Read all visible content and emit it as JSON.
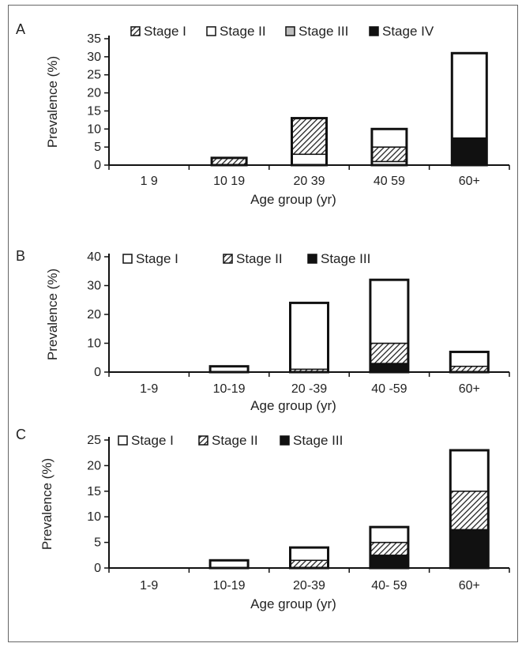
{
  "colors": {
    "stage_iii_grey": "#bdbdbd",
    "border": "#555555",
    "ink": "#111111"
  },
  "chart_data": [
    {
      "panel": "A",
      "type": "bar",
      "stacked": true,
      "categories": [
        "1 9",
        "10 19",
        "20 39",
        "40 59",
        "60+"
      ],
      "xlabel": "Age group (yr)",
      "ylabel": "Prevalence (%)",
      "ylim": [
        0,
        35
      ],
      "yticks": [
        0,
        5,
        10,
        15,
        20,
        25,
        30,
        35
      ],
      "legend": [
        {
          "name": "Stage I",
          "fill": "hatch"
        },
        {
          "name": "Stage II",
          "fill": "white"
        },
        {
          "name": "Stage III",
          "fill": "grey"
        },
        {
          "name": "Stage IV",
          "fill": "black"
        }
      ],
      "series": [
        {
          "name": "Stage IV",
          "values": [
            0,
            0,
            0,
            0,
            7.5
          ]
        },
        {
          "name": "Stage III",
          "values": [
            0,
            0,
            0,
            0,
            0
          ]
        },
        {
          "name": "Stage II",
          "values": [
            0,
            0,
            3,
            1,
            23.5
          ]
        },
        {
          "name": "Stage I",
          "values": [
            0,
            2,
            10,
            4,
            0
          ]
        },
        {
          "name": "Stage II",
          "values": [
            0,
            0,
            0,
            5,
            0
          ]
        }
      ]
    },
    {
      "panel": "B",
      "type": "bar",
      "stacked": true,
      "categories": [
        "1-9",
        "10-19",
        "20 -39",
        "40 -59",
        "60+"
      ],
      "xlabel": "Age group (yr)",
      "ylabel": "Prevalence (%)",
      "ylim": [
        0,
        40
      ],
      "yticks": [
        0,
        10,
        20,
        30,
        40
      ],
      "legend": [
        {
          "name": "Stage I",
          "fill": "white"
        },
        {
          "name": "Stage II",
          "fill": "hatch"
        },
        {
          "name": "Stage III",
          "fill": "black"
        }
      ],
      "series": [
        {
          "name": "Stage III",
          "values": [
            0,
            0,
            0,
            3,
            0
          ]
        },
        {
          "name": "Stage II",
          "values": [
            0,
            0,
            1,
            7,
            2
          ]
        },
        {
          "name": "Stage I",
          "values": [
            0,
            2,
            23,
            22,
            5
          ]
        }
      ]
    },
    {
      "panel": "C",
      "type": "bar",
      "stacked": true,
      "categories": [
        "1-9",
        "10-19",
        "20-39",
        "40- 59",
        "60+"
      ],
      "xlabel": "Age group (yr)",
      "ylabel": "Prevalence (%)",
      "ylim": [
        0,
        25
      ],
      "yticks": [
        0,
        5,
        10,
        15,
        20,
        25
      ],
      "legend": [
        {
          "name": "Stage I",
          "fill": "white"
        },
        {
          "name": "Stage II",
          "fill": "hatch"
        },
        {
          "name": "Stage III",
          "fill": "black"
        }
      ],
      "series": [
        {
          "name": "Stage III",
          "values": [
            0,
            0,
            0,
            2.5,
            7.5
          ]
        },
        {
          "name": "Stage II",
          "values": [
            0,
            0,
            1.5,
            2.5,
            7.5
          ]
        },
        {
          "name": "Stage I",
          "values": [
            0,
            1.5,
            2.5,
            3,
            8
          ]
        }
      ]
    }
  ]
}
